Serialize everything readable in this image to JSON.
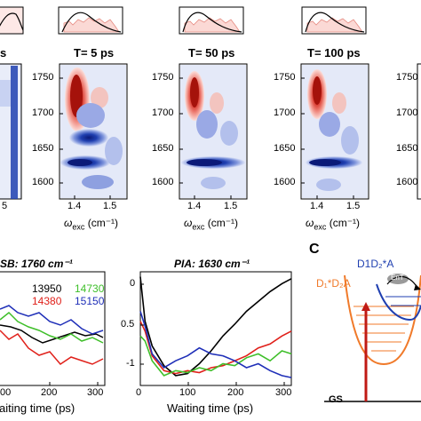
{
  "panel_letter": "C",
  "spectra": {
    "titles": [
      "s",
      "T= 5 ps",
      "T= 50 ps",
      "T= 100 ps"
    ],
    "y_ticks": [
      "1750",
      "1700",
      "1650",
      "1600"
    ],
    "x_ticks_full": [
      "1.4",
      "1.5"
    ],
    "x_ticks_left": [
      "5"
    ],
    "x_label": "ω",
    "x_label_sub": "exc",
    "x_label_unit": "(cm⁻¹)",
    "colors": {
      "positive": "#d42a1f",
      "negative": "#1f3fb0",
      "light_neg": "#c8d2f2"
    }
  },
  "kinetics_left": {
    "title": "SB: 1760 cm⁻¹",
    "x_label": "aiting time (ps)",
    "x_ticks": [
      "00",
      "200",
      "300"
    ],
    "legend": [
      {
        "label": "13950",
        "color": "#000000"
      },
      {
        "label": "14730",
        "color": "#3fbf2a"
      },
      {
        "label": "14380",
        "color": "#e0201a"
      },
      {
        "label": "15150",
        "color": "#1f2fb8"
      }
    ]
  },
  "kinetics_right": {
    "title": "PIA: 1630 cm⁻¹",
    "x_label": "Waiting time (ps)",
    "x_ticks": [
      "0",
      "100",
      "200",
      "300"
    ],
    "y_ticks": [
      "0",
      "0.5",
      "-1"
    ],
    "chart_data": {
      "type": "line",
      "title": "PIA: 1630 cm⁻¹",
      "xlabel": "Waiting time (ps)",
      "ylabel": "",
      "xlim": [
        0,
        320
      ],
      "ylim": [
        -1.1,
        0.05
      ],
      "series": [
        {
          "name": "13950",
          "color": "#000000",
          "x": [
            0,
            10,
            25,
            50,
            75,
            100,
            125,
            150,
            175,
            200,
            225,
            250,
            275,
            300,
            320
          ],
          "y": [
            0.0,
            -0.45,
            -0.7,
            -0.9,
            -1.0,
            -0.98,
            -0.88,
            -0.75,
            -0.6,
            -0.48,
            -0.35,
            -0.25,
            -0.15,
            -0.07,
            -0.02
          ]
        },
        {
          "name": "14380",
          "color": "#e0201a",
          "x": [
            0,
            10,
            25,
            50,
            75,
            100,
            125,
            150,
            175,
            200,
            225,
            250,
            275,
            300,
            320
          ],
          "y": [
            -0.45,
            -0.55,
            -0.8,
            -0.95,
            -0.98,
            -0.95,
            -0.97,
            -0.92,
            -0.9,
            -0.85,
            -0.8,
            -0.72,
            -0.68,
            -0.6,
            -0.55
          ]
        },
        {
          "name": "14730",
          "color": "#3fbf2a",
          "x": [
            0,
            10,
            25,
            50,
            75,
            100,
            125,
            150,
            175,
            200,
            225,
            250,
            275,
            300,
            320
          ],
          "y": [
            -0.6,
            -0.65,
            -0.85,
            -1.0,
            -0.95,
            -0.97,
            -0.92,
            -0.95,
            -0.88,
            -0.9,
            -0.82,
            -0.78,
            -0.85,
            -0.75,
            -0.78
          ]
        },
        {
          "name": "15150",
          "color": "#1f2fb8",
          "x": [
            0,
            10,
            25,
            50,
            75,
            100,
            125,
            150,
            175,
            200,
            225,
            250,
            275,
            300,
            320
          ],
          "y": [
            -0.35,
            -0.5,
            -0.78,
            -0.92,
            -0.85,
            -0.8,
            -0.72,
            -0.78,
            -0.8,
            -0.85,
            -0.92,
            -0.88,
            -0.95,
            -1.0,
            -1.02
          ]
        }
      ]
    }
  },
  "energy_diagram": {
    "label_left": "D₁*D₂A",
    "label_right": "D1D₂*A",
    "ent_label": "EnT",
    "ground_label": "GS",
    "colors": {
      "left_well": "#f07a2a",
      "right_well": "#1f3fb0",
      "arrow": "#c01a14",
      "ent": "#888888"
    }
  }
}
